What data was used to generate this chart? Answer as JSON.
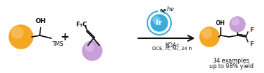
{
  "bg_color": "#ffffff",
  "orange_color": "#F5A623",
  "orange_light": "#FAC97A",
  "purple_color": "#C8A0D8",
  "purple_light": "#DFC0EC",
  "blue_color": "#3AACDB",
  "blue_light": "#7DD8F0",
  "red_color": "#EE1111",
  "black_color": "#111111",
  "figsize": [
    3.78,
    1.05
  ],
  "dpi": 100,
  "reagent_line1": "KOAc",
  "reagent_line2": "DCE, rt, N₂, 24 h",
  "yield_line1": "34 examples",
  "yield_line2": "up to 98% yield",
  "ir_label": "Ir",
  "hv_label": "hν",
  "oh_label": "OH",
  "tms_label": "TMS",
  "f3c_label": "F₃C",
  "f_label": "F"
}
